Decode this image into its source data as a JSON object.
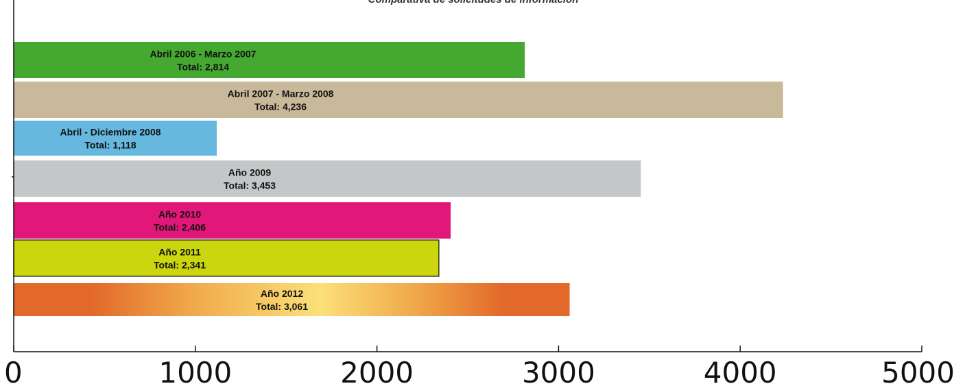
{
  "chart_data": {
    "type": "bar",
    "orientation": "horizontal",
    "title": "Comparativa de solicitudes de información",
    "xlim": [
      0,
      5000
    ],
    "x_ticks": [
      0,
      1000,
      2000,
      3000,
      4000,
      5000
    ],
    "grid": false,
    "legend": "none",
    "categories": [
      "Abril 2006 - Marzo 2007",
      "Abril 2007 - Marzo 2008",
      "Abril - Diciembre 2008",
      "Año 2009",
      "Año 2010",
      "Año 2011",
      "Año 2012"
    ],
    "values": [
      2814,
      4236,
      1118,
      3453,
      2406,
      2341,
      3061
    ],
    "value_labels": [
      "Total: 2,814",
      "Total: 4,236",
      "Total: 1,118",
      "Total: 3,453",
      "Total: 2,406",
      "Total: 2,341",
      "Total: 3,061"
    ],
    "colors": [
      "#45a830",
      "#c8b99a",
      "#66b8df",
      "#c4c6c8",
      "#e2177a",
      "#cbd60e",
      "gradient:#e2692a,#fbe07a"
    ]
  }
}
